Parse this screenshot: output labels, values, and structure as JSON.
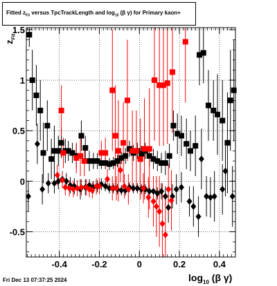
{
  "chart_data": {
    "type": "scatter",
    "title_parts": {
      "a": "Fitted  z",
      "a_sub": "Fit",
      "b": " versus TpcTrackLength and log",
      "b_sub": "10",
      "c": " (β  γ) for Primary kaon+"
    },
    "ylabel": "z",
    "ylabel_sub": "Fit",
    "xlabel": "log",
    "xlabel_sub": "10",
    "xlabel_tail": " (β γ)",
    "xlim": [
      -0.565,
      0.48
    ],
    "ylim": [
      -0.75,
      1.52
    ],
    "grid": true,
    "x_ticks": [
      "-0.4",
      "-0.2",
      "0",
      "0.2",
      "0.4"
    ],
    "x_tick_values": [
      -0.4,
      -0.2,
      0,
      0.2,
      0.4
    ],
    "y_ticks": [
      "-0.5",
      "0",
      "0.5",
      "1",
      "1.5"
    ],
    "y_tick_values": [
      -0.5,
      0,
      0.5,
      1,
      1.5
    ],
    "colors": {
      "black": "#000000",
      "red": "#ff0000"
    },
    "series": [
      {
        "color": "#000000",
        "marker": "square",
        "points": [
          [
            -0.55,
            1.45,
            0.12
          ],
          [
            -0.535,
            1.0,
            0.3
          ],
          [
            -0.515,
            0.85,
            0.3
          ],
          [
            -0.495,
            0.7,
            0.3
          ],
          [
            -0.48,
            0.28,
            0.3
          ],
          [
            -0.46,
            0.55,
            0.25
          ],
          [
            -0.44,
            0.22,
            0.2
          ],
          [
            -0.425,
            0.3,
            0.25
          ],
          [
            -0.405,
            0.3,
            0.15
          ],
          [
            -0.39,
            0.38,
            0.15
          ],
          [
            -0.37,
            0.3,
            0.12
          ],
          [
            -0.355,
            0.3,
            0.1
          ],
          [
            -0.335,
            0.28,
            0.1
          ],
          [
            -0.315,
            0.25,
            0.12
          ],
          [
            -0.29,
            0.45,
            0.15
          ],
          [
            -0.27,
            0.33,
            0.12
          ],
          [
            -0.25,
            0.2,
            0.1
          ],
          [
            -0.23,
            0.2,
            0.08
          ],
          [
            -0.21,
            0.2,
            0.08
          ],
          [
            -0.19,
            0.18,
            0.06
          ],
          [
            -0.17,
            0.18,
            0.06
          ],
          [
            -0.15,
            0.17,
            0.06
          ],
          [
            -0.13,
            0.18,
            0.06
          ],
          [
            -0.11,
            0.2,
            0.06
          ],
          [
            -0.09,
            0.23,
            0.06
          ],
          [
            -0.07,
            0.25,
            0.08
          ],
          [
            -0.05,
            0.32,
            0.08
          ],
          [
            -0.03,
            0.28,
            0.08
          ],
          [
            -0.01,
            0.3,
            0.08
          ],
          [
            0.01,
            0.27,
            0.08
          ],
          [
            0.03,
            0.3,
            0.08
          ],
          [
            0.05,
            0.25,
            0.1
          ],
          [
            0.07,
            0.22,
            0.1
          ],
          [
            0.09,
            0.2,
            0.1
          ],
          [
            0.11,
            0.18,
            0.1
          ],
          [
            0.13,
            0.18,
            0.12
          ],
          [
            0.15,
            0.25,
            0.12
          ],
          [
            0.17,
            0.55,
            0.15
          ],
          [
            0.19,
            0.47,
            0.2
          ],
          [
            0.21,
            0.45,
            0.2
          ],
          [
            0.235,
            0.37,
            0.25
          ],
          [
            0.255,
            0.3,
            0.2
          ],
          [
            0.28,
            0.35,
            0.3
          ],
          [
            0.3,
            1.25,
            0.3
          ],
          [
            0.32,
            1.27,
            0.3
          ],
          [
            0.345,
            0.75,
            0.35
          ],
          [
            0.37,
            0.7,
            0.3
          ],
          [
            0.39,
            0.66,
            0.4
          ],
          [
            0.415,
            0.6,
            0.4
          ],
          [
            0.44,
            0.38,
            0.5
          ],
          [
            0.455,
            0.8,
            0.5
          ],
          [
            0.472,
            0.9,
            0.5
          ]
        ]
      },
      {
        "color": "#000000",
        "marker": "diamond",
        "points": [
          [
            -0.555,
            -0.15,
            0.15
          ],
          [
            -0.51,
            0.37,
            0.2
          ],
          [
            -0.485,
            -0.08,
            0.15
          ],
          [
            -0.455,
            -0.02,
            0.1
          ],
          [
            -0.425,
            -0.02,
            0.1
          ],
          [
            -0.405,
            0.0,
            0.08
          ],
          [
            -0.385,
            0.02,
            0.08
          ],
          [
            -0.365,
            0.0,
            0.08
          ],
          [
            -0.345,
            -0.04,
            0.08
          ],
          [
            -0.325,
            -0.05,
            0.08
          ],
          [
            -0.295,
            -0.08,
            0.1
          ],
          [
            -0.27,
            -0.06,
            0.08
          ],
          [
            -0.25,
            -0.04,
            0.06
          ],
          [
            -0.23,
            -0.06,
            0.06
          ],
          [
            -0.21,
            -0.05,
            0.06
          ],
          [
            -0.19,
            -0.03,
            0.06
          ],
          [
            -0.17,
            -0.05,
            0.05
          ],
          [
            -0.15,
            -0.07,
            0.05
          ],
          [
            -0.13,
            -0.07,
            0.05
          ],
          [
            -0.11,
            -0.08,
            0.05
          ],
          [
            -0.09,
            -0.09,
            0.05
          ],
          [
            -0.07,
            -0.09,
            0.05
          ],
          [
            -0.05,
            -0.06,
            0.05
          ],
          [
            -0.03,
            -0.07,
            0.05
          ],
          [
            -0.01,
            -0.07,
            0.05
          ],
          [
            0.01,
            -0.08,
            0.05
          ],
          [
            0.03,
            -0.08,
            0.05
          ],
          [
            0.05,
            -0.1,
            0.06
          ],
          [
            0.07,
            -0.1,
            0.06
          ],
          [
            0.09,
            -0.12,
            0.06
          ],
          [
            0.11,
            -0.1,
            0.08
          ],
          [
            0.13,
            -0.15,
            0.1
          ],
          [
            0.145,
            -0.26,
            0.15
          ],
          [
            0.165,
            -0.15,
            0.12
          ],
          [
            0.185,
            -0.08,
            0.15
          ],
          [
            0.21,
            -0.06,
            0.15
          ],
          [
            0.25,
            -0.2,
            0.15
          ],
          [
            0.27,
            -0.25,
            0.2
          ],
          [
            0.295,
            -0.35,
            0.2
          ],
          [
            0.31,
            0.22,
            0.3
          ],
          [
            0.335,
            -0.15,
            0.2
          ],
          [
            0.355,
            -0.16,
            0.2
          ],
          [
            0.375,
            -0.15,
            0.25
          ],
          [
            0.415,
            -0.08,
            0.25
          ],
          [
            0.43,
            0.1,
            0.25
          ],
          [
            0.465,
            -0.15,
            0.3
          ]
        ]
      },
      {
        "color": "#ff0000",
        "marker": "square",
        "points": [
          [
            -0.39,
            0.7,
            0.25
          ],
          [
            -0.38,
            0.28,
            0.15
          ],
          [
            -0.315,
            0.23,
            0.15
          ],
          [
            -0.295,
            0.25,
            0.2
          ],
          [
            -0.275,
            0.2,
            0.15
          ],
          [
            -0.19,
            0.28,
            0.12
          ],
          [
            -0.17,
            0.28,
            0.15
          ],
          [
            -0.135,
            0.9,
            0.6
          ],
          [
            -0.12,
            0.45,
            0.5
          ],
          [
            -0.105,
            0.3,
            0.5
          ],
          [
            -0.08,
            0.38,
            0.4
          ],
          [
            -0.06,
            0.8,
            0.6
          ],
          [
            -0.035,
            0.3,
            0.4
          ],
          [
            -0.015,
            0.3,
            0.4
          ],
          [
            0.005,
            0.22,
            0.4
          ],
          [
            0.025,
            0.32,
            0.5
          ],
          [
            0.05,
            0.32,
            0.6
          ],
          [
            0.075,
            1.0,
            0.6
          ],
          [
            0.1,
            0.95,
            0.6
          ],
          [
            0.12,
            0.95,
            0.6
          ],
          [
            0.14,
            0.97,
            0.6
          ],
          [
            0.165,
            1.08,
            0.6
          ],
          [
            0.23,
            1.38,
            0.6
          ]
        ]
      },
      {
        "color": "#ff0000",
        "marker": "diamond",
        "points": [
          [
            -0.41,
            0.06,
            0.1
          ],
          [
            -0.385,
            0.01,
            0.08
          ],
          [
            -0.37,
            -0.06,
            0.08
          ],
          [
            -0.35,
            -0.07,
            0.08
          ],
          [
            -0.33,
            -0.08,
            0.08
          ],
          [
            -0.31,
            -0.07,
            0.08
          ],
          [
            -0.29,
            -0.06,
            0.08
          ],
          [
            -0.265,
            -0.06,
            0.08
          ],
          [
            -0.25,
            -0.08,
            0.08
          ],
          [
            -0.235,
            -0.09,
            0.08
          ],
          [
            -0.215,
            -0.05,
            0.08
          ],
          [
            -0.2,
            -0.05,
            0.08
          ],
          [
            -0.16,
            0.02,
            0.1
          ],
          [
            -0.135,
            -0.07,
            0.12
          ],
          [
            -0.115,
            -0.07,
            0.12
          ],
          [
            -0.095,
            0.11,
            0.12
          ],
          [
            -0.075,
            -0.05,
            0.12
          ],
          [
            -0.055,
            -0.08,
            0.15
          ],
          [
            0.02,
            -0.07,
            0.15
          ],
          [
            0.045,
            -0.16,
            0.2
          ],
          [
            0.07,
            -0.2,
            0.25
          ],
          [
            0.085,
            -0.25,
            0.3
          ],
          [
            0.1,
            -0.3,
            0.35
          ],
          [
            0.115,
            -0.42,
            0.4
          ],
          [
            0.13,
            -0.53,
            0.4
          ],
          [
            0.145,
            -0.08,
            0.25
          ],
          [
            0.16,
            -0.19,
            0.3
          ]
        ]
      }
    ]
  },
  "footer": {
    "timestamp": "Fri Dec 13 07:37:25 2024"
  }
}
